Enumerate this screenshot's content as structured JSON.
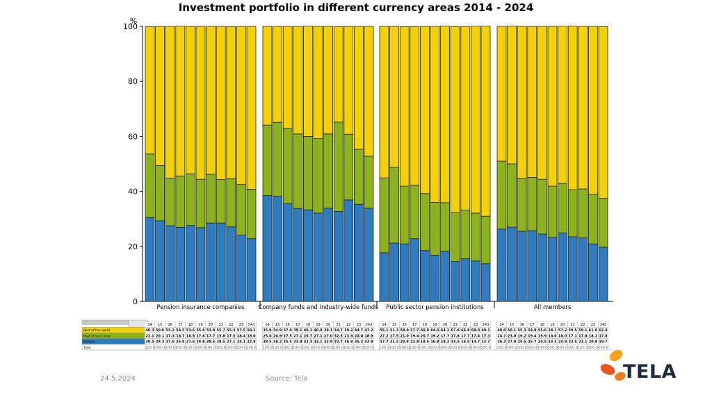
{
  "chart_data": {
    "type": "bar",
    "stacked": true,
    "title": "Investment portfolio in different currency areas 2014 - 2024",
    "ylabel": "%",
    "ylim": [
      0,
      100
    ],
    "yticks": [
      "0",
      "20",
      "40",
      "60",
      "80",
      "100"
    ],
    "groups": [
      {
        "name": "Pension insurance companies",
        "years": [
          "14",
          "15",
          "16",
          "17",
          "18",
          "19",
          "20",
          "21",
          "22",
          "23",
          "24/I"
        ],
        "finland": [
          30.5,
          29.3,
          27.5,
          26.9,
          27.6,
          26.8,
          28.5,
          28.5,
          27.1,
          24.1,
          22.8
        ],
        "euro": [
          23.1,
          20.1,
          17.3,
          18.7,
          18.8,
          17.6,
          17.7,
          15.8,
          17.5,
          18.4,
          18.0
        ],
        "world": [
          46.3,
          50.6,
          55.2,
          54.5,
          53.6,
          55.6,
          53.8,
          55.7,
          55.3,
          57.5,
          59.2
        ]
      },
      {
        "name": "Company funds and industry-wide funds",
        "years": [
          "14",
          "15",
          "16",
          "17",
          "18",
          "19",
          "20",
          "21",
          "22",
          "23",
          "24/I"
        ],
        "finland": [
          38.5,
          38.2,
          35.5,
          33.8,
          33.3,
          32.1,
          33.9,
          32.7,
          36.9,
          35.3,
          33.9
        ],
        "euro": [
          25.6,
          26.9,
          27.5,
          27.1,
          26.7,
          27.1,
          27.0,
          32.5,
          23.9,
          20.0,
          18.9
        ],
        "world": [
          35.9,
          34.9,
          37.0,
          39.1,
          40.1,
          40.8,
          39.1,
          34.7,
          39.2,
          44.7,
          47.2
        ]
      },
      {
        "name": "Public sector pension institutions",
        "years": [
          "14",
          "15",
          "16",
          "17",
          "18",
          "19",
          "20",
          "21",
          "22",
          "23",
          "24/I"
        ],
        "finland": [
          17.7,
          21.2,
          20.9,
          22.8,
          18.5,
          16.8,
          18.2,
          14.5,
          15.5,
          14.7,
          13.7
        ],
        "euro": [
          27.2,
          27.5,
          21.0,
          19.4,
          20.7,
          19.2,
          17.7,
          17.8,
          17.7,
          17.4,
          17.3
        ],
        "world": [
          55.1,
          51.3,
          58.0,
          57.7,
          60.8,
          64.0,
          64.2,
          67.6,
          66.8,
          68.0,
          69.1
        ]
      },
      {
        "name": "All members",
        "years": [
          "14",
          "15",
          "16",
          "17",
          "18",
          "19",
          "20",
          "21",
          "22",
          "23",
          "24/I"
        ],
        "finland": [
          26.3,
          27.0,
          25.5,
          25.7,
          24.5,
          23.3,
          24.9,
          23.5,
          23.1,
          20.9,
          19.7
        ],
        "euro": [
          24.7,
          23.0,
          19.2,
          19.4,
          19.9,
          18.6,
          18.0,
          17.1,
          17.8,
          18.1,
          17.8
        ],
        "world": [
          49.0,
          50.1,
          55.3,
          54.9,
          55.6,
          58.1,
          57.2,
          59.5,
          59.1,
          61.0,
          62.4
        ]
      }
    ],
    "legend": [
      {
        "key": "world",
        "label": "Rest of the world",
        "color": "#f5d100"
      },
      {
        "key": "euro",
        "label": "Rest of euro area",
        "color": "#8cb41a"
      },
      {
        "key": "finland",
        "label": "Finland",
        "color": "#2e7bbf"
      }
    ],
    "total_label": "Total",
    "total_value": "100.0"
  },
  "footer": {
    "date": "24.5.2024",
    "source": "Source: Tela"
  },
  "logo": {
    "text": "TELA"
  }
}
